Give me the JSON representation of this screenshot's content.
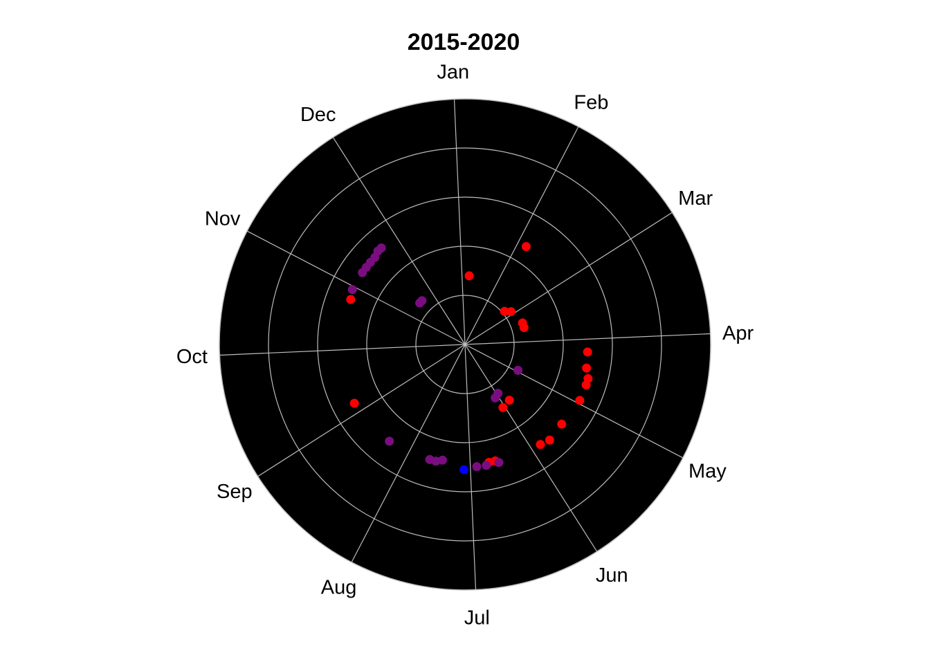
{
  "chart_data": {
    "type": "scatter",
    "projection": "polar",
    "title": "2015-2020",
    "angular_labels": [
      "Jan",
      "Feb",
      "Mar",
      "Apr",
      "May",
      "Jun",
      "Jul",
      "Aug",
      "Sep",
      "Oct",
      "Nov",
      "Dec"
    ],
    "radial_rings": 5,
    "background": "#000000",
    "grid_color": "#bebebe",
    "series": [
      {
        "color": "#ff0000",
        "points": [
          {
            "t": 0.2,
            "r": 1.4
          },
          {
            "t": 1.15,
            "r": 2.35
          },
          {
            "t": 1.75,
            "r": 1.05
          },
          {
            "t": 1.9,
            "r": 1.15
          },
          {
            "t": 2.4,
            "r": 1.25
          },
          {
            "t": 2.55,
            "r": 1.25
          },
          {
            "t": 3.2,
            "r": 2.5
          },
          {
            "t": 3.45,
            "r": 2.52
          },
          {
            "t": 3.6,
            "r": 2.6
          },
          {
            "t": 3.7,
            "r": 2.6
          },
          {
            "t": 3.95,
            "r": 2.6
          },
          {
            "t": 4.4,
            "r": 2.55
          },
          {
            "t": 4.7,
            "r": 2.6
          },
          {
            "t": 4.85,
            "r": 2.55
          },
          {
            "t": 5.6,
            "r": 2.45
          },
          {
            "t": 5.7,
            "r": 2.45
          },
          {
            "t": 4.8,
            "r": 1.45
          },
          {
            "t": 5.05,
            "r": 1.5
          },
          {
            "t": 8.15,
            "r": 2.55
          },
          {
            "t": 9.8,
            "r": 2.5
          }
        ]
      },
      {
        "color": "#7a0e80",
        "points": [
          {
            "t": 3.95,
            "r": 1.2
          },
          {
            "t": 4.95,
            "r": 1.2
          },
          {
            "t": 5.1,
            "r": 1.25
          },
          {
            "t": 5.55,
            "r": 2.5
          },
          {
            "t": 5.75,
            "r": 2.5
          },
          {
            "t": 5.9,
            "r": 2.5
          },
          {
            "t": 6.45,
            "r": 2.4
          },
          {
            "t": 6.55,
            "r": 2.45
          },
          {
            "t": 6.65,
            "r": 2.45
          },
          {
            "t": 7.35,
            "r": 2.5
          },
          {
            "t": 9.95,
            "r": 2.55
          },
          {
            "t": 10.25,
            "r": 2.55
          },
          {
            "t": 10.35,
            "r": 2.55
          },
          {
            "t": 10.45,
            "r": 2.55
          },
          {
            "t": 10.55,
            "r": 2.55
          },
          {
            "t": 10.65,
            "r": 2.6
          },
          {
            "t": 10.72,
            "r": 2.6
          },
          {
            "t": 10.5,
            "r": 1.25
          },
          {
            "t": 10.6,
            "r": 1.25
          }
        ]
      },
      {
        "color": "#0000ff",
        "points": [
          {
            "t": 6.1,
            "r": 2.55
          }
        ]
      }
    ]
  }
}
